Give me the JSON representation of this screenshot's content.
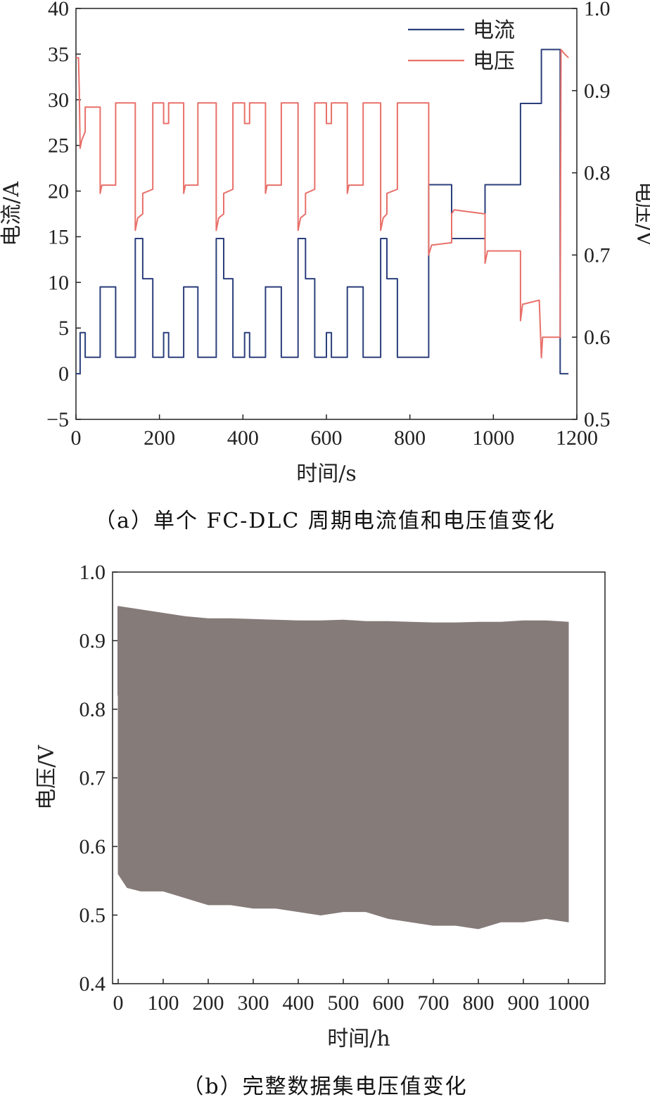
{
  "chart_data": [
    {
      "type": "line",
      "caption": "（a）单个 FC-DLC 周期电流值和电压值变化",
      "xlabel": "时间/s",
      "ylabel": "电流/A",
      "y2label": "电压/V",
      "xlim": [
        0,
        1200
      ],
      "ylim": [
        -5,
        40
      ],
      "y2lim": [
        0.5,
        1.0
      ],
      "xticks": [
        "0",
        "200",
        "400",
        "600",
        "800",
        "1000",
        "1200"
      ],
      "yticks": [
        "−5",
        "0",
        "5",
        "10",
        "15",
        "20",
        "25",
        "30",
        "35",
        "40"
      ],
      "y2ticks": [
        "0.5",
        "0.6",
        "0.7",
        "0.8",
        "0.9",
        "1.0"
      ],
      "legend_position": "top-right",
      "grid": false,
      "series": [
        {
          "name": "电流",
          "axis": "left",
          "color": "#2b3f7c",
          "points": [
            [
              0,
              0
            ],
            [
              10,
              0
            ],
            [
              10,
              4.5
            ],
            [
              22,
              4.5
            ],
            [
              22,
              1.8
            ],
            [
              58,
              1.8
            ],
            [
              58,
              9.5
            ],
            [
              95,
              9.5
            ],
            [
              95,
              1.8
            ],
            [
              142,
              1.8
            ],
            [
              142,
              14.8
            ],
            [
              160,
              14.8
            ],
            [
              160,
              10.4
            ],
            [
              184,
              10.4
            ],
            [
              184,
              1.8
            ],
            [
              210,
              1.8
            ],
            [
              210,
              4.5
            ],
            [
              222,
              4.5
            ],
            [
              222,
              1.8
            ],
            [
              258,
              1.8
            ],
            [
              258,
              9.5
            ],
            [
              292,
              9.5
            ],
            [
              292,
              1.8
            ],
            [
              336,
              1.8
            ],
            [
              336,
              14.8
            ],
            [
              354,
              14.8
            ],
            [
              354,
              10.4
            ],
            [
              376,
              10.4
            ],
            [
              376,
              1.8
            ],
            [
              404,
              1.8
            ],
            [
              404,
              4.5
            ],
            [
              416,
              4.5
            ],
            [
              416,
              1.8
            ],
            [
              454,
              1.8
            ],
            [
              454,
              9.5
            ],
            [
              492,
              9.5
            ],
            [
              492,
              1.8
            ],
            [
              532,
              1.8
            ],
            [
              532,
              14.8
            ],
            [
              550,
              14.8
            ],
            [
              550,
              10.4
            ],
            [
              572,
              10.4
            ],
            [
              572,
              1.8
            ],
            [
              600,
              1.8
            ],
            [
              600,
              4.5
            ],
            [
              612,
              4.5
            ],
            [
              612,
              1.8
            ],
            [
              650,
              1.8
            ],
            [
              650,
              9.5
            ],
            [
              688,
              9.5
            ],
            [
              688,
              1.8
            ],
            [
              730,
              1.8
            ],
            [
              730,
              14.8
            ],
            [
              745,
              14.8
            ],
            [
              745,
              10.4
            ],
            [
              770,
              10.4
            ],
            [
              770,
              1.8
            ],
            [
              845,
              1.8
            ],
            [
              845,
              20.7
            ],
            [
              900,
              20.7
            ],
            [
              900,
              14.8
            ],
            [
              980,
              14.8
            ],
            [
              980,
              20.7
            ],
            [
              1065,
              20.7
            ],
            [
              1065,
              29.6
            ],
            [
              1115,
              29.6
            ],
            [
              1115,
              35.5
            ],
            [
              1160,
              35.5
            ],
            [
              1160,
              0
            ],
            [
              1180,
              0
            ]
          ]
        },
        {
          "name": "电压",
          "axis": "right",
          "color": "#e8706a",
          "points": [
            [
              0,
              0.94
            ],
            [
              6,
              0.94
            ],
            [
              8,
              0.9
            ],
            [
              10,
              0.83
            ],
            [
              14,
              0.84
            ],
            [
              22,
              0.85
            ],
            [
              22,
              0.88
            ],
            [
              58,
              0.88
            ],
            [
              58,
              0.775
            ],
            [
              62,
              0.785
            ],
            [
              95,
              0.785
            ],
            [
              95,
              0.885
            ],
            [
              142,
              0.885
            ],
            [
              142,
              0.73
            ],
            [
              148,
              0.745
            ],
            [
              160,
              0.75
            ],
            [
              160,
              0.775
            ],
            [
              184,
              0.78
            ],
            [
              184,
              0.885
            ],
            [
              210,
              0.885
            ],
            [
              210,
              0.86
            ],
            [
              222,
              0.86
            ],
            [
              222,
              0.885
            ],
            [
              258,
              0.885
            ],
            [
              258,
              0.775
            ],
            [
              262,
              0.785
            ],
            [
              292,
              0.785
            ],
            [
              292,
              0.885
            ],
            [
              336,
              0.885
            ],
            [
              336,
              0.73
            ],
            [
              342,
              0.745
            ],
            [
              354,
              0.75
            ],
            [
              354,
              0.775
            ],
            [
              376,
              0.78
            ],
            [
              376,
              0.885
            ],
            [
              404,
              0.885
            ],
            [
              404,
              0.86
            ],
            [
              416,
              0.86
            ],
            [
              416,
              0.885
            ],
            [
              454,
              0.885
            ],
            [
              454,
              0.775
            ],
            [
              458,
              0.785
            ],
            [
              492,
              0.785
            ],
            [
              492,
              0.885
            ],
            [
              532,
              0.885
            ],
            [
              532,
              0.73
            ],
            [
              538,
              0.745
            ],
            [
              550,
              0.75
            ],
            [
              550,
              0.775
            ],
            [
              572,
              0.78
            ],
            [
              572,
              0.885
            ],
            [
              600,
              0.885
            ],
            [
              600,
              0.86
            ],
            [
              612,
              0.86
            ],
            [
              612,
              0.885
            ],
            [
              650,
              0.885
            ],
            [
              650,
              0.775
            ],
            [
              654,
              0.785
            ],
            [
              688,
              0.785
            ],
            [
              688,
              0.885
            ],
            [
              730,
              0.885
            ],
            [
              730,
              0.73
            ],
            [
              736,
              0.745
            ],
            [
              745,
              0.75
            ],
            [
              745,
              0.775
            ],
            [
              770,
              0.78
            ],
            [
              770,
              0.885
            ],
            [
              845,
              0.885
            ],
            [
              845,
              0.7
            ],
            [
              852,
              0.712
            ],
            [
              900,
              0.715
            ],
            [
              900,
              0.75
            ],
            [
              906,
              0.755
            ],
            [
              980,
              0.75
            ],
            [
              980,
              0.69
            ],
            [
              986,
              0.705
            ],
            [
              1065,
              0.705
            ],
            [
              1065,
              0.62
            ],
            [
              1070,
              0.64
            ],
            [
              1110,
              0.645
            ],
            [
              1115,
              0.575
            ],
            [
              1118,
              0.6
            ],
            [
              1150,
              0.6
            ],
            [
              1160,
              0.6
            ],
            [
              1162,
              0.95
            ],
            [
              1170,
              0.945
            ],
            [
              1180,
              0.94
            ]
          ]
        }
      ]
    },
    {
      "type": "area",
      "caption": "（b）完整数据集电压值变化",
      "xlabel": "时间/h",
      "ylabel": "电压/V",
      "xlim": [
        0,
        1010
      ],
      "ylim": [
        0.4,
        1.0
      ],
      "xticks": [
        "0",
        "100",
        "200",
        "300",
        "400",
        "500",
        "600",
        "700",
        "800",
        "900",
        "1000"
      ],
      "yticks": [
        "0.4",
        "0.5",
        "0.6",
        "0.7",
        "0.8",
        "0.9",
        "1.0"
      ],
      "grid": false,
      "fill_color": "#857b79",
      "upper": [
        [
          0,
          0.95
        ],
        [
          50,
          0.945
        ],
        [
          100,
          0.94
        ],
        [
          150,
          0.935
        ],
        [
          200,
          0.932
        ],
        [
          250,
          0.932
        ],
        [
          300,
          0.931
        ],
        [
          350,
          0.93
        ],
        [
          400,
          0.929
        ],
        [
          450,
          0.929
        ],
        [
          500,
          0.93
        ],
        [
          550,
          0.928
        ],
        [
          600,
          0.928
        ],
        [
          650,
          0.927
        ],
        [
          700,
          0.926
        ],
        [
          750,
          0.926
        ],
        [
          800,
          0.927
        ],
        [
          850,
          0.927
        ],
        [
          900,
          0.929
        ],
        [
          950,
          0.929
        ],
        [
          1000,
          0.927
        ]
      ],
      "lower": [
        [
          0,
          0.56
        ],
        [
          20,
          0.54
        ],
        [
          50,
          0.535
        ],
        [
          100,
          0.535
        ],
        [
          150,
          0.525
        ],
        [
          200,
          0.515
        ],
        [
          250,
          0.515
        ],
        [
          300,
          0.51
        ],
        [
          350,
          0.51
        ],
        [
          400,
          0.505
        ],
        [
          450,
          0.5
        ],
        [
          500,
          0.505
        ],
        [
          550,
          0.505
        ],
        [
          600,
          0.495
        ],
        [
          650,
          0.49
        ],
        [
          700,
          0.485
        ],
        [
          750,
          0.485
        ],
        [
          800,
          0.48
        ],
        [
          850,
          0.49
        ],
        [
          900,
          0.49
        ],
        [
          950,
          0.495
        ],
        [
          1000,
          0.49
        ]
      ]
    }
  ]
}
